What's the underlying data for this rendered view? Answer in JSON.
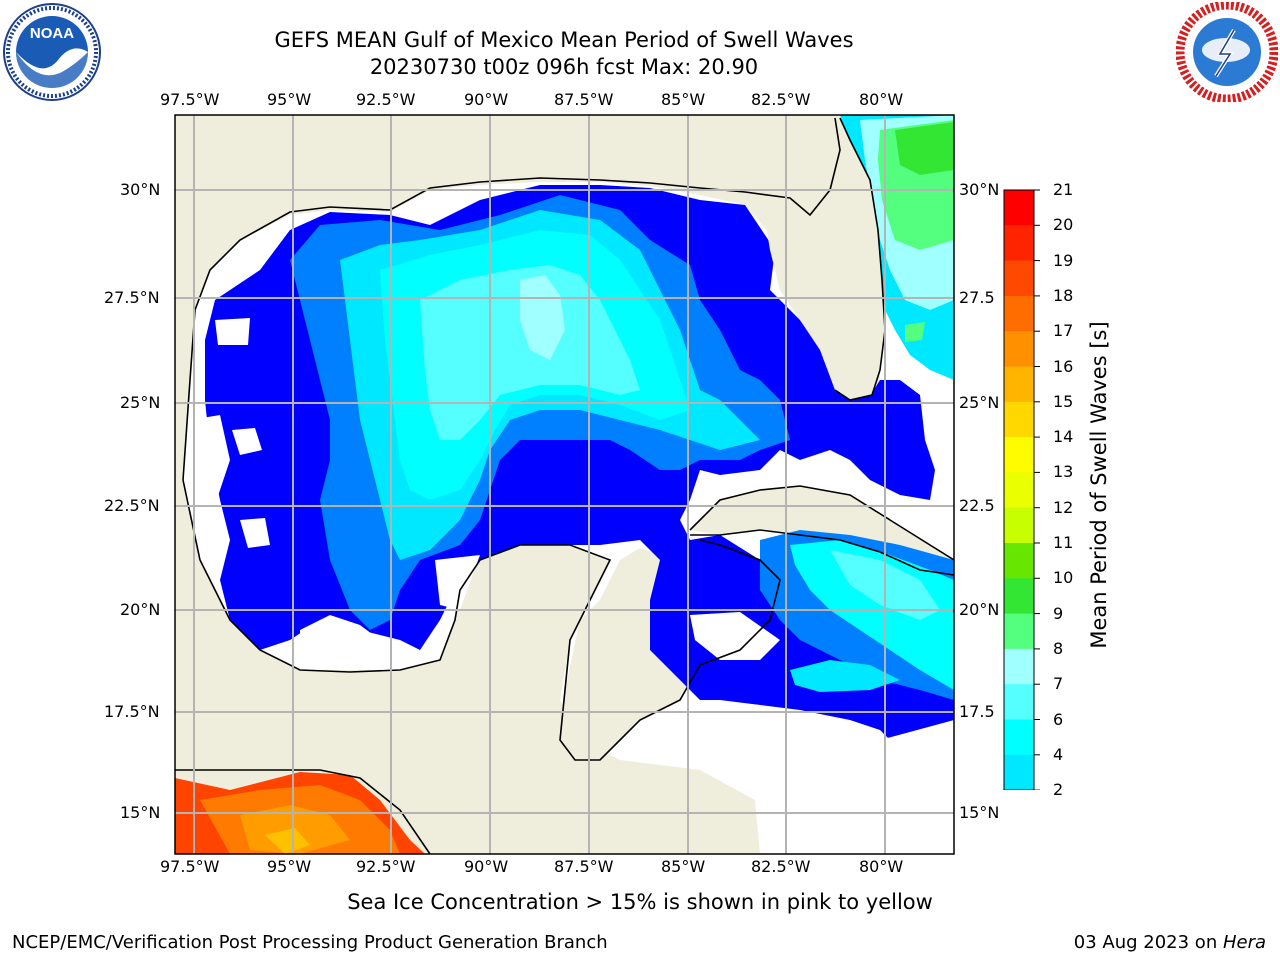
{
  "header": {
    "title_line1": "GEFS MEAN Gulf of Mexico Mean Period of Swell Waves",
    "title_line2": "20230730 t00z 096h fcst   Max: 20.90"
  },
  "logos": {
    "left": {
      "name": "NOAA",
      "ring_text": "NATIONAL OCEANIC AND ATMOSPHERIC ADMINISTRATION · U.S. DEPARTMENT OF COMMERCE"
    },
    "right": {
      "ring_text": "NATIONAL WEATHER SERVICE"
    }
  },
  "map": {
    "lon_ticks": [
      "97.5°W",
      "95°W",
      "92.5°W",
      "90°W",
      "87.5°W",
      "85°W",
      "82.5°W",
      "80°W"
    ],
    "lat_ticks": [
      "30°N",
      "27.5°N",
      "25°N",
      "22.5°N",
      "20°N",
      "17.5°N",
      "15°N"
    ],
    "lat_ticks_right": [
      "30°N",
      "27.5",
      "25°N",
      "22.5",
      "20°N",
      "17.5",
      "15°N"
    ],
    "colors": {
      "land": "#efeddc",
      "grid": "#b4b4b4",
      "coast": "#000000"
    }
  },
  "colorbar": {
    "label": "Mean Period of Swell Waves [s]",
    "ticks": [
      "21",
      "20",
      "19",
      "18",
      "17",
      "16",
      "15",
      "14",
      "13",
      "12",
      "11",
      "10",
      "9",
      "8",
      "7",
      "6",
      "4",
      "2"
    ],
    "colors": [
      "#ff0000",
      "#ff2400",
      "#ff4800",
      "#ff6c00",
      "#ff9000",
      "#ffb400",
      "#ffd800",
      "#fffc00",
      "#eaff00",
      "#c8ff00",
      "#66e600",
      "#33e633",
      "#54ff80",
      "#a0ffff",
      "#55ffff",
      "#00ffff",
      "#00e8ff",
      "#0080ff"
    ],
    "under_color": "#0000ff"
  },
  "note": "Sea Ice Concentration > 15% is shown in pink to yellow",
  "footer": {
    "left": "NCEP/EMC/Verification Post Processing Product Generation Branch",
    "right_prefix": "03 Aug 2023 on ",
    "right_host": "Hera"
  }
}
